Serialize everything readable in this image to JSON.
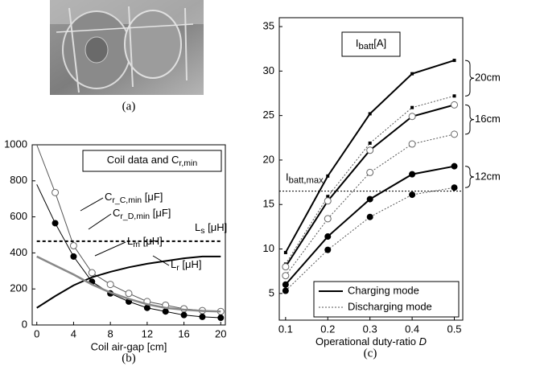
{
  "figure_labels": [
    "(a)",
    "(b)",
    "(c)"
  ],
  "chart_data": [
    {
      "type": "line",
      "xlabel": "Coil air-gap [cm]",
      "box_label": {
        "base": "Coil data and C",
        "sub": "r,min"
      },
      "x": [
        0,
        2,
        4,
        6,
        8,
        10,
        12,
        14,
        16,
        18,
        20
      ],
      "xlim": [
        -0.5,
        20.5
      ],
      "xticks": [
        0,
        4,
        8,
        12,
        16,
        20
      ],
      "ylim": [
        0,
        1000
      ],
      "yticks": [
        0,
        200,
        400,
        600,
        800,
        1000
      ],
      "series": [
        {
          "name": {
            "base": "C",
            "sub": "r_C,min",
            "suffix": " [μF]"
          },
          "color": "#555555",
          "width": 1,
          "marker": "open-circle",
          "values": [
            1000,
            735,
            440,
            290,
            225,
            175,
            130,
            110,
            90,
            80,
            75
          ]
        },
        {
          "name": {
            "base": "C",
            "sub": "r_D,min",
            "suffix": " [μF]"
          },
          "color": "#000000",
          "width": 1,
          "marker": "filled-circle",
          "values": [
            780,
            565,
            380,
            240,
            175,
            130,
            95,
            75,
            55,
            45,
            40
          ]
        },
        {
          "name": {
            "base": "L",
            "sub": "s",
            "suffix": " [μH]"
          },
          "color": "#000000",
          "width": 2,
          "dash": true,
          "marker": "none",
          "values": [
            465,
            465,
            465,
            465,
            465,
            465,
            465,
            465,
            465,
            465,
            465
          ]
        },
        {
          "name": {
            "base": "L",
            "sub": "m",
            "suffix": " [μH]"
          },
          "color": "#000000",
          "width": 2,
          "marker": "none",
          "values": [
            95,
            160,
            220,
            265,
            295,
            320,
            340,
            355,
            370,
            380,
            380
          ]
        },
        {
          "name": {
            "base": "L",
            "sub": "r",
            "suffix": " [μH]"
          },
          "color": "#888888",
          "width": 2.5,
          "marker": "none",
          "values": [
            380,
            330,
            280,
            225,
            180,
            145,
            115,
            95,
            85,
            78,
            75
          ]
        }
      ]
    },
    {
      "type": "line",
      "xlabel": {
        "base": "Operational duty-ratio ",
        "italic": "D"
      },
      "box_label": {
        "base": "I",
        "sub": "batt",
        "suffix": "[A]"
      },
      "x": [
        0.1,
        0.2,
        0.3,
        0.4,
        0.5
      ],
      "xlim": [
        0.085,
        0.52
      ],
      "xticks": [
        0.1,
        0.2,
        0.3,
        0.4,
        0.5
      ],
      "ylim": [
        2,
        36
      ],
      "yticks": [
        5,
        10,
        15,
        20,
        25,
        30,
        35
      ],
      "limit_line": {
        "label": {
          "base": "I",
          "sub": "batt,max"
        },
        "value": 16.5
      },
      "legend": [
        "Charging mode",
        "Discharging mode"
      ],
      "groups": [
        {
          "label": "20cm",
          "marker": "square",
          "charging": [
            9.6,
            18.2,
            25.2,
            29.7,
            31.2
          ],
          "discharging": [
            8.3,
            15.9,
            21.9,
            25.9,
            27.2
          ]
        },
        {
          "label": "16cm",
          "marker": "open-circle",
          "charging": [
            8,
            15.4,
            21.1,
            24.9,
            26.2
          ],
          "discharging": [
            7,
            13.4,
            18.6,
            21.8,
            22.9
          ]
        },
        {
          "label": "12cm",
          "marker": "filled-circle",
          "charging": [
            6,
            11.4,
            15.6,
            18.4,
            19.3
          ],
          "discharging": [
            5.3,
            9.9,
            13.6,
            16.1,
            16.9
          ]
        }
      ]
    }
  ]
}
